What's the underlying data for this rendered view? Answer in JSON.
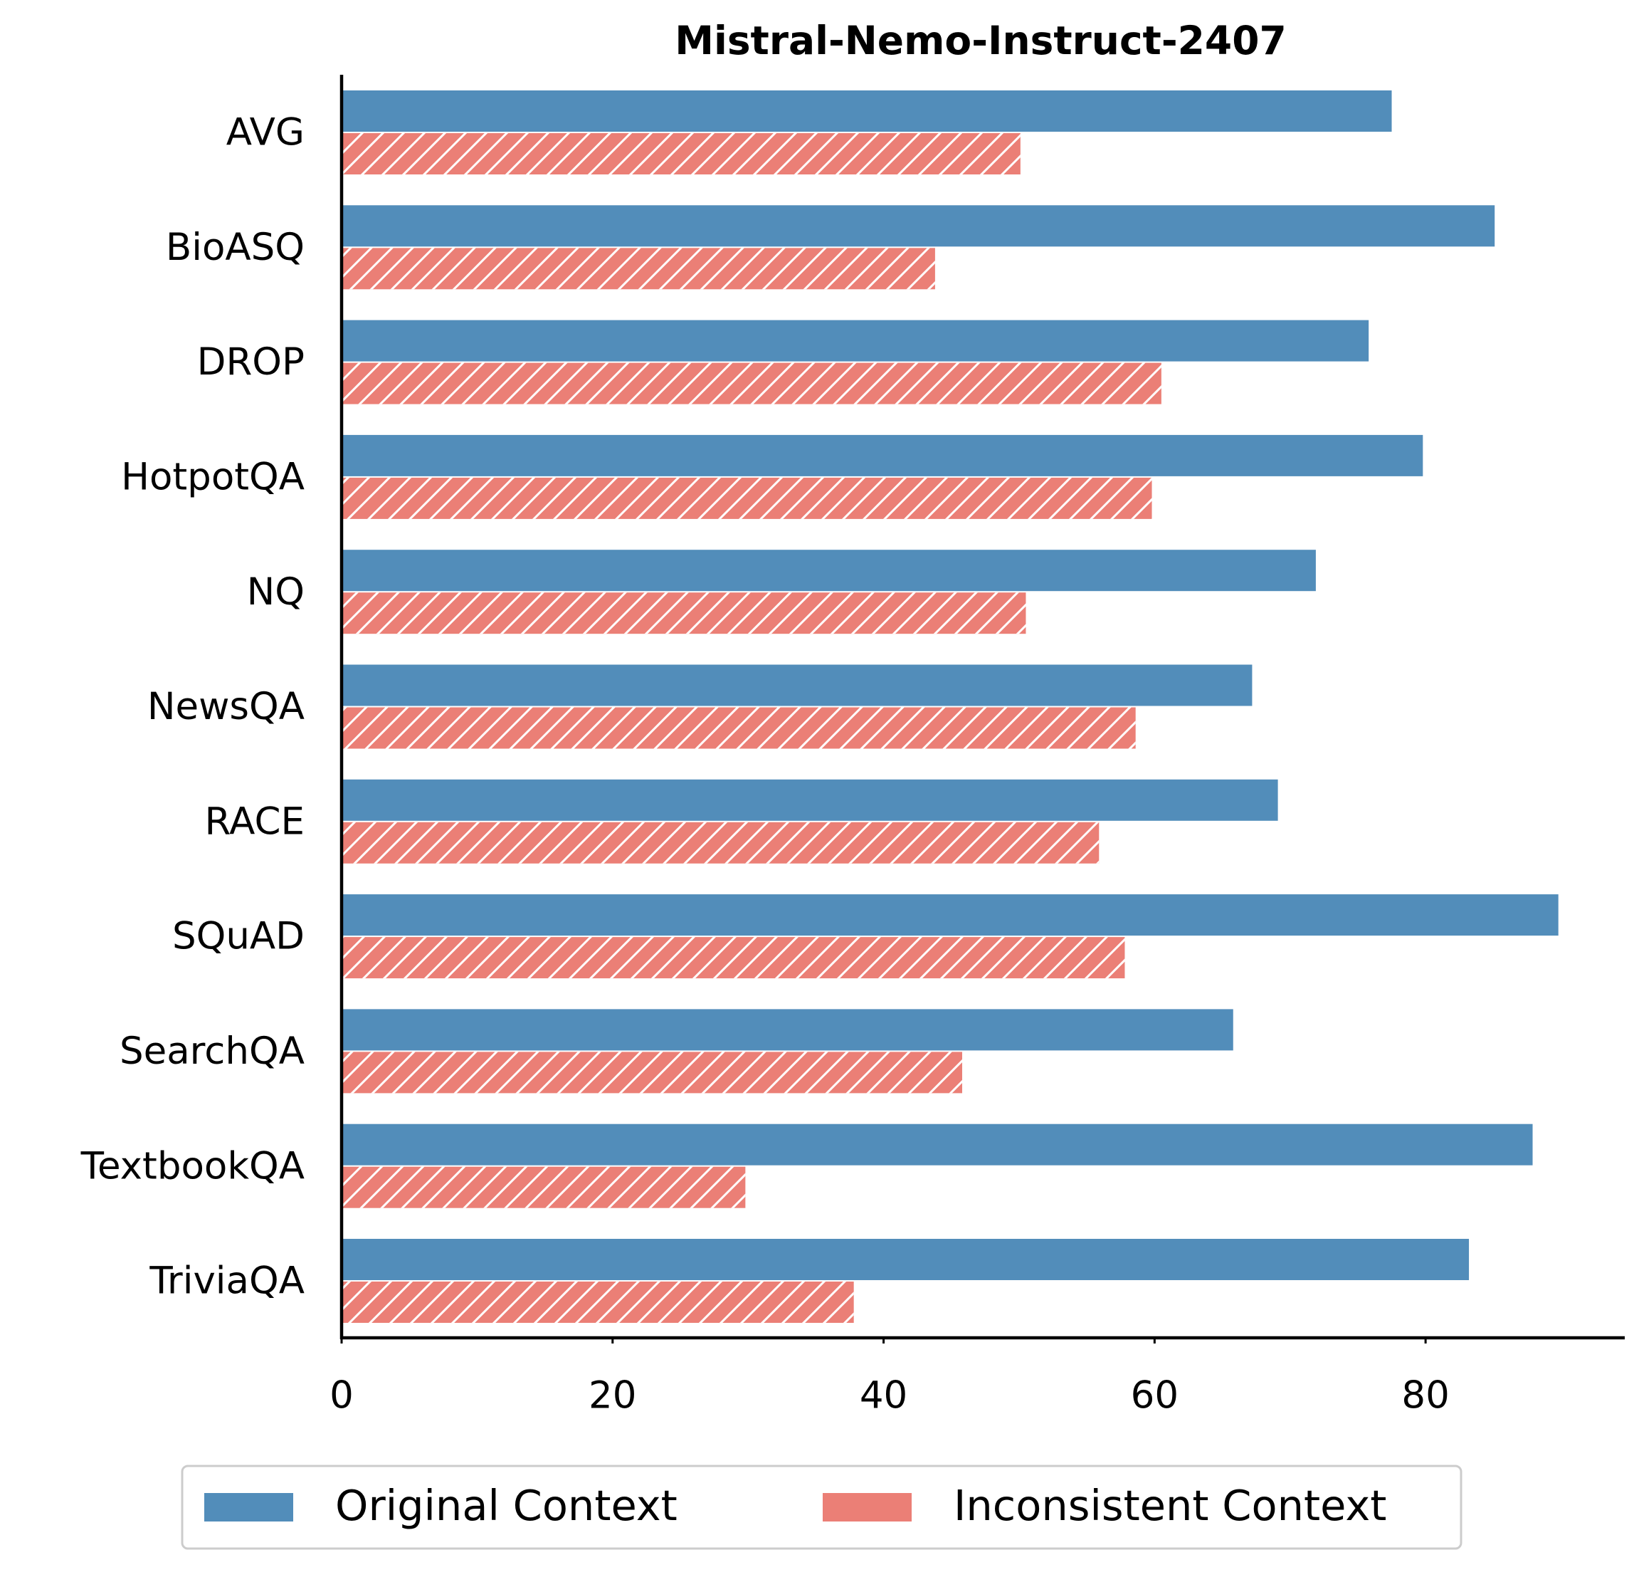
{
  "chart_data": {
    "type": "barh",
    "title": "Mistral-Nemo-Instruct-2407",
    "categories": [
      "AVG",
      "BioASQ",
      "DROP",
      "HotpotQA",
      "NQ",
      "NewsQA",
      "RACE",
      "SQuAD",
      "SearchQA",
      "TextbookQA",
      "TriviaQA"
    ],
    "series": [
      {
        "name": "Original Context",
        "color": "#528dba",
        "hatch": false,
        "values": [
          77.5,
          85.1,
          75.8,
          79.8,
          71.9,
          67.2,
          69.1,
          89.8,
          65.8,
          87.9,
          83.2
        ]
      },
      {
        "name": "Inconsistent Context",
        "color": "#eb7f76",
        "hatch": true,
        "values": [
          50.1,
          43.8,
          60.5,
          59.8,
          50.5,
          58.6,
          55.9,
          57.8,
          45.8,
          29.8,
          37.8
        ]
      }
    ],
    "xlim": [
      0,
      94.7
    ],
    "xticks": [
      0,
      20,
      40,
      60,
      80
    ],
    "legend": "bottom"
  }
}
